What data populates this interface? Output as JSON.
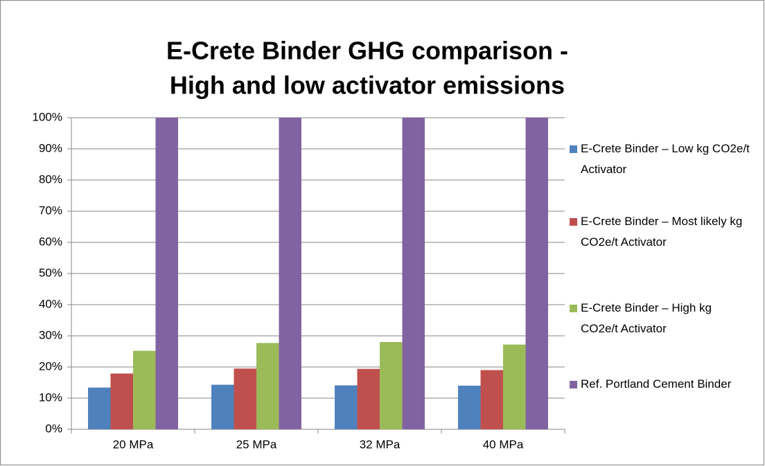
{
  "chart_data": {
    "type": "bar",
    "title": "E-Crete Binder GHG comparison -",
    "subtitle": "High and low activator emissions",
    "categories": [
      "20 MPa",
      "25 MPa",
      "32 MPa",
      "40 MPa"
    ],
    "series": [
      {
        "name": "E-Crete Binder – Low kg CO2e/t Activator",
        "color": "#4f81bd",
        "values": [
          13.4,
          14.3,
          14.1,
          14.0
        ]
      },
      {
        "name": "E-Crete Binder – Most likely kg CO2e/t Activator",
        "color": "#c0504d",
        "values": [
          17.9,
          19.5,
          19.4,
          19.0
        ]
      },
      {
        "name": "E-Crete Binder – High kg CO2e/t Activator",
        "color": "#9bbb59",
        "values": [
          25.2,
          27.7,
          28.0,
          27.2
        ]
      },
      {
        "name": "Ref. Portland Cement Binder",
        "color": "#8064a2",
        "values": [
          100,
          100,
          100,
          100
        ]
      }
    ],
    "ylim": [
      0,
      100
    ],
    "yticks": [
      {
        "value": 0,
        "label": "0%"
      },
      {
        "value": 10,
        "label": "10%"
      },
      {
        "value": 20,
        "label": "20%"
      },
      {
        "value": 30,
        "label": "30%"
      },
      {
        "value": 40,
        "label": "40%"
      },
      {
        "value": 50,
        "label": "50%"
      },
      {
        "value": 60,
        "label": "60%"
      },
      {
        "value": 70,
        "label": "70%"
      },
      {
        "value": 80,
        "label": "80%"
      },
      {
        "value": 90,
        "label": "90%"
      },
      {
        "value": 100,
        "label": "100%"
      }
    ],
    "grid": true,
    "legend": "right"
  }
}
